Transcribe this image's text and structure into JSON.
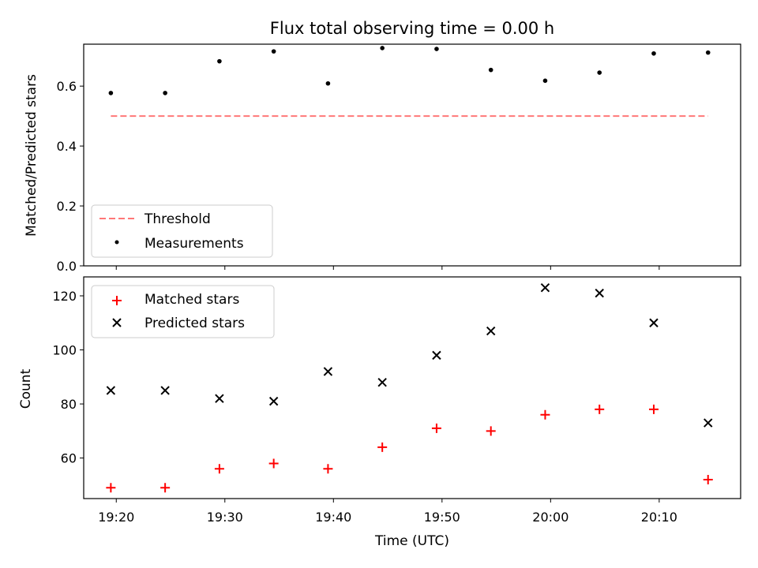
{
  "chart_data": [
    {
      "type": "scatter",
      "title": "Flux total observing time = 0.00 h",
      "xlabel": "",
      "ylabel": "Matched/Predicted stars",
      "x": [
        "19:19:30",
        "19:24:30",
        "19:29:30",
        "19:34:30",
        "19:39:30",
        "19:44:30",
        "19:49:30",
        "19:54:30",
        "19:59:30",
        "20:04:30",
        "20:09:30",
        "20:14:30"
      ],
      "xlim": [
        "19:17:00",
        "20:17:30"
      ],
      "ylim": [
        0.0,
        0.74
      ],
      "yticks": [
        "0.0",
        "0.2",
        "0.4",
        "0.6"
      ],
      "series": [
        {
          "name": "Threshold",
          "style": "dashed-line",
          "color": "#ff7777",
          "x": [
            "19:19:30",
            "20:14:30"
          ],
          "values": [
            0.5,
            0.5
          ]
        },
        {
          "name": "Measurements",
          "style": "dot",
          "color": "#000000",
          "values": [
            0.577,
            0.577,
            0.683,
            0.716,
            0.609,
            0.727,
            0.724,
            0.654,
            0.618,
            0.645,
            0.709,
            0.712
          ]
        }
      ],
      "legend": "lower-left",
      "grid": false
    },
    {
      "type": "scatter",
      "xlabel": "Time (UTC)",
      "ylabel": "Count",
      "x": [
        "19:19:30",
        "19:24:30",
        "19:29:30",
        "19:34:30",
        "19:39:30",
        "19:44:30",
        "19:49:30",
        "19:54:30",
        "19:59:30",
        "20:04:30",
        "20:09:30",
        "20:14:30"
      ],
      "xlim": [
        "19:17:00",
        "20:17:30"
      ],
      "xticks": [
        "19:20",
        "19:30",
        "19:40",
        "19:50",
        "20:00",
        "20:10"
      ],
      "ylim": [
        45,
        127
      ],
      "yticks": [
        "60",
        "80",
        "100",
        "120"
      ],
      "series": [
        {
          "name": "Matched stars",
          "style": "plus",
          "color": "#ff0000",
          "values": [
            49,
            49,
            56,
            58,
            56,
            64,
            71,
            70,
            76,
            78,
            78,
            52
          ]
        },
        {
          "name": "Predicted stars",
          "style": "x",
          "color": "#000000",
          "values": [
            85,
            85,
            82,
            81,
            92,
            88,
            98,
            107,
            123,
            121,
            110,
            73
          ]
        }
      ],
      "legend": "upper-left",
      "grid": false
    }
  ]
}
